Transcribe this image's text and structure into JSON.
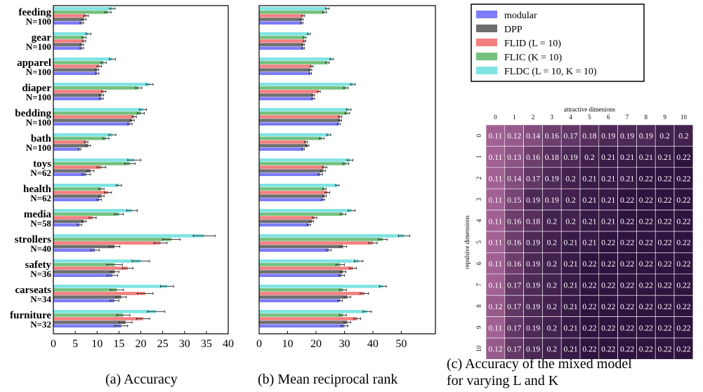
{
  "chart_data": [
    {
      "type": "bar",
      "caption": "(a) Accuracy",
      "categories": [
        "feeding",
        "gear",
        "apparel",
        "diaper",
        "bedding",
        "bath",
        "toys",
        "health",
        "media",
        "strollers",
        "safety",
        "carseats",
        "furniture"
      ],
      "category_sizes": [
        "N=100",
        "N=100",
        "N=100",
        "N=100",
        "N=100",
        "N=100",
        "N=62",
        "N=62",
        "N=58",
        "N=40",
        "N=36",
        "N=34",
        "N=32"
      ],
      "xlim": [
        0,
        40
      ],
      "xticks": [
        0,
        5,
        10,
        15,
        20,
        25,
        30,
        35,
        40
      ],
      "series": [
        {
          "name": "modular",
          "color": "#7c7cf6",
          "values": [
            6.5,
            6.5,
            10,
            11,
            17.5,
            6,
            7.5,
            10.5,
            6,
            9.5,
            13.5,
            14,
            15.5
          ]
        },
        {
          "name": "DPP",
          "color": "#6e6e6e",
          "values": [
            7,
            6.5,
            10,
            11,
            18,
            8,
            8.5,
            11,
            7,
            14,
            14,
            15.5,
            16.5
          ]
        },
        {
          "name": "FLID (L = 10)",
          "color": "#f47f7f",
          "values": [
            7.5,
            7,
            10.5,
            11.5,
            18.5,
            7.5,
            11,
            12.5,
            9,
            24.5,
            17,
            21,
            20.5
          ]
        },
        {
          "name": "FLIC (K = 10)",
          "color": "#74c07c",
          "values": [
            12.5,
            7,
            11.5,
            19.5,
            20,
            12,
            17.5,
            11,
            15,
            27,
            14,
            14.5,
            16
          ]
        },
        {
          "name": "FLDC (L = 10, K = 10)",
          "color": "#7fe3e3",
          "values": [
            13.5,
            8,
            13.5,
            22,
            20.5,
            13.5,
            18.5,
            15,
            18,
            34.5,
            20,
            26,
            23.5
          ]
        }
      ],
      "errors": [
        [
          0.4,
          0.4,
          0.4,
          0.4,
          0.5,
          0.3,
          1.0,
          0.5,
          0.5,
          1.0,
          1.2,
          1.0,
          1.5
        ],
        [
          0.5,
          0.4,
          0.4,
          0.5,
          0.5,
          0.5,
          0.8,
          0.6,
          0.5,
          1.2,
          1.0,
          1.2,
          1.5
        ],
        [
          0.5,
          0.4,
          0.5,
          0.5,
          0.5,
          0.4,
          1.0,
          0.8,
          0.8,
          1.5,
          1.2,
          1.8,
          1.5
        ],
        [
          0.7,
          0.5,
          0.6,
          0.7,
          0.8,
          0.7,
          1.2,
          0.6,
          1.0,
          2.0,
          1.8,
          1.5,
          1.5
        ],
        [
          0.6,
          0.6,
          0.7,
          0.8,
          0.8,
          0.8,
          1.5,
          0.6,
          1.2,
          2.5,
          2.0,
          1.5,
          2.0
        ]
      ]
    },
    {
      "type": "bar",
      "caption": "(b) Mean reciprocal rank",
      "categories": [
        "feeding",
        "gear",
        "apparel",
        "diaper",
        "bedding",
        "bath",
        "toys",
        "health",
        "media",
        "strollers",
        "safety",
        "carseats",
        "furniture"
      ],
      "xlim": [
        0,
        62
      ],
      "xticks": [
        0,
        10,
        20,
        30,
        40,
        50
      ],
      "series": [
        {
          "name": "modular",
          "color": "#7c7cf6",
          "values": [
            15,
            15.5,
            18,
            19,
            28,
            15.5,
            21.5,
            22.5,
            17.5,
            24.5,
            29,
            28.5,
            30
          ]
        },
        {
          "name": "DPP",
          "color": "#6e6e6e",
          "values": [
            15,
            15.5,
            18,
            19,
            28.5,
            17,
            22.5,
            23,
            18.5,
            29.5,
            29.5,
            31,
            31
          ]
        },
        {
          "name": "FLID (L = 10)",
          "color": "#f47f7f",
          "values": [
            15.5,
            16,
            18.5,
            21,
            28.5,
            16.5,
            23,
            24,
            19.5,
            40,
            33,
            37,
            34.5
          ]
        },
        {
          "name": "FLIC (K = 10)",
          "color": "#74c07c",
          "values": [
            23,
            16,
            24,
            30.5,
            31,
            22,
            30.5,
            23,
            29.5,
            43.5,
            28.5,
            29.5,
            29.5
          ]
        },
        {
          "name": "FLDC (L = 10, K = 10)",
          "color": "#7fe3e3",
          "values": [
            24,
            17.5,
            25.5,
            33,
            31.5,
            24.5,
            32,
            27.5,
            32.5,
            51,
            35,
            43.5,
            38
          ]
        }
      ],
      "errors": [
        [
          0.4,
          0.4,
          0.4,
          0.5,
          0.5,
          0.4,
          0.8,
          0.5,
          0.6,
          0.8,
          1.0,
          0.8,
          1.2
        ],
        [
          0.5,
          0.4,
          0.5,
          0.5,
          0.5,
          0.5,
          0.8,
          0.6,
          0.6,
          1.2,
          1.0,
          1.2,
          1.2
        ],
        [
          0.5,
          0.4,
          0.5,
          0.5,
          0.6,
          0.5,
          0.8,
          0.8,
          0.8,
          1.5,
          1.2,
          1.5,
          1.2
        ],
        [
          0.7,
          0.5,
          0.6,
          0.8,
          0.8,
          0.8,
          1.0,
          0.6,
          1.0,
          1.5,
          1.5,
          1.2,
          1.2
        ],
        [
          0.6,
          0.5,
          0.6,
          0.8,
          0.8,
          0.7,
          1.0,
          0.6,
          1.2,
          2.0,
          1.5,
          1.2,
          1.5
        ]
      ]
    },
    {
      "type": "heatmap",
      "caption": "(c) Accuracy of the mixed model",
      "caption2": "for varying L and K",
      "xlabel": "attractive dimenions",
      "ylabel": "repulsive dimensions",
      "x_ticks": [
        "0",
        "1",
        "2",
        "3",
        "4",
        "5",
        "6",
        "7",
        "8",
        "9",
        "10"
      ],
      "y_ticks": [
        "0",
        "1",
        "2",
        "3",
        "4",
        "5",
        "6",
        "7",
        "8",
        "9",
        "10"
      ],
      "values": [
        [
          0.11,
          0.12,
          0.14,
          0.16,
          0.17,
          0.18,
          0.19,
          0.19,
          0.19,
          0.2,
          0.2
        ],
        [
          0.11,
          0.13,
          0.16,
          0.18,
          0.19,
          0.2,
          0.21,
          0.21,
          0.21,
          0.21,
          0.22
        ],
        [
          0.11,
          0.14,
          0.17,
          0.19,
          0.2,
          0.21,
          0.21,
          0.21,
          0.22,
          0.22,
          0.22
        ],
        [
          0.11,
          0.15,
          0.19,
          0.19,
          0.2,
          0.21,
          0.21,
          0.22,
          0.22,
          0.22,
          0.22
        ],
        [
          0.11,
          0.16,
          0.18,
          0.2,
          0.2,
          0.21,
          0.21,
          0.22,
          0.22,
          0.22,
          0.22
        ],
        [
          0.11,
          0.16,
          0.19,
          0.2,
          0.21,
          0.21,
          0.22,
          0.22,
          0.22,
          0.22,
          0.22
        ],
        [
          0.11,
          0.16,
          0.19,
          0.2,
          0.21,
          0.22,
          0.22,
          0.22,
          0.22,
          0.22,
          0.22
        ],
        [
          0.11,
          0.17,
          0.19,
          0.2,
          0.21,
          0.22,
          0.22,
          0.22,
          0.22,
          0.22,
          0.22
        ],
        [
          0.12,
          0.17,
          0.19,
          0.2,
          0.21,
          0.22,
          0.22,
          0.22,
          0.22,
          0.22,
          0.22
        ],
        [
          0.11,
          0.17,
          0.19,
          0.2,
          0.21,
          0.22,
          0.22,
          0.22,
          0.22,
          0.22,
          0.22
        ],
        [
          0.12,
          0.17,
          0.19,
          0.2,
          0.21,
          0.22,
          0.22,
          0.22,
          0.22,
          0.22,
          0.22
        ]
      ],
      "colors": {
        "low": "#a16293",
        "high": "#2e133e"
      }
    }
  ],
  "legend": {
    "entries": [
      {
        "text": "modular",
        "color": "#7c7cf6"
      },
      {
        "text": "DPP",
        "color": "#6e6e6e"
      },
      {
        "text": "FLID (L = 10)",
        "color": "#f47f7f"
      },
      {
        "text": "FLIC (K = 10)",
        "color": "#74c07c"
      },
      {
        "text": "FLDC (L = 10, K = 10)",
        "color": "#7fe3e3"
      }
    ]
  }
}
